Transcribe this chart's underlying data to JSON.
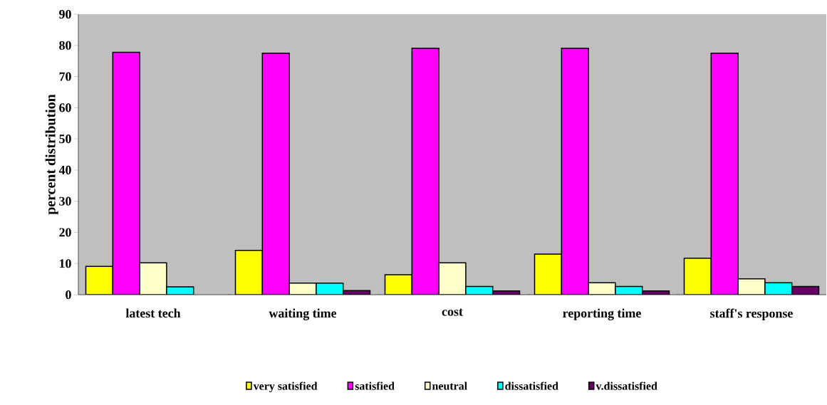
{
  "chart_data": {
    "type": "bar",
    "ylabel": "percent distribution",
    "categories": [
      "latest tech",
      "waiting time",
      "cost",
      "reporting time",
      "staff's response"
    ],
    "series": [
      {
        "name": "very satisfied",
        "color": "#ffff00",
        "values": [
          9.1,
          14.2,
          6.4,
          13.0,
          11.7
        ]
      },
      {
        "name": "satisfied",
        "color": "#ff00ff",
        "values": [
          77.8,
          77.5,
          79.1,
          79.1,
          77.5
        ]
      },
      {
        "name": "neutral",
        "color": "#ffffcc",
        "values": [
          10.2,
          3.7,
          10.2,
          3.8,
          5.1
        ]
      },
      {
        "name": "dissatisfied",
        "color": "#00ffff",
        "values": [
          2.5,
          3.7,
          2.6,
          2.6,
          3.8
        ]
      },
      {
        "name": "v.dissatisfied",
        "color": "#660066",
        "values": [
          null,
          1.3,
          1.2,
          1.2,
          2.6
        ]
      }
    ],
    "ylim": [
      0,
      90
    ],
    "yticks": [
      0,
      10,
      20,
      30,
      40,
      50,
      60,
      70,
      80,
      90
    ],
    "legend": "bottom",
    "grid": false
  }
}
